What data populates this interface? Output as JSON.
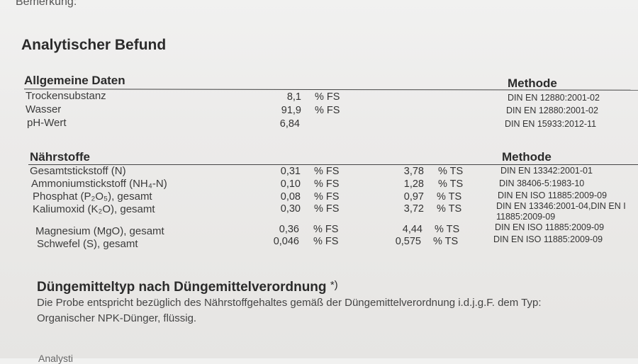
{
  "header_cut": "Bemerkung:",
  "title": "Analytischer Befund",
  "general": {
    "heading": "Allgemeine Daten",
    "method_heading": "Methode",
    "rows": [
      {
        "label": "Trockensubstanz",
        "fs": "8,1",
        "unit_fs": "% FS",
        "method": "DIN EN 12880:2001-02"
      },
      {
        "label": "Wasser",
        "fs": "91,9",
        "unit_fs": "% FS",
        "method": "DIN EN 12880:2001-02"
      },
      {
        "label": "pH-Wert",
        "fs": "6,84",
        "unit_fs": "",
        "method": "DIN EN 15933:2012-11"
      }
    ]
  },
  "nutrients": {
    "heading": "Nährstoffe",
    "method_heading": "Methode",
    "rows": [
      {
        "label": "Gesamtstickstoff (N)",
        "fs": "0,31",
        "unit_fs": "% FS",
        "ts": "3,78",
        "unit_ts": "% TS",
        "method": "DIN EN 13342:2001-01",
        "method2": ""
      },
      {
        "label": "Ammoniumstickstoff (NH₄-N)",
        "fs": "0,10",
        "unit_fs": "% FS",
        "ts": "1,28",
        "unit_ts": "% TS",
        "method": "DIN 38406-5:1983-10",
        "method2": ""
      },
      {
        "label": "Phosphat (P₂O₅), gesamt",
        "fs": "0,08",
        "unit_fs": "% FS",
        "ts": "0,97",
        "unit_ts": "% TS",
        "method": "DIN EN ISO 11885:2009-09",
        "method2": ""
      },
      {
        "label": "Kaliumoxid (K₂O), gesamt",
        "fs": "0,30",
        "unit_fs": "% FS",
        "ts": "3,72",
        "unit_ts": "% TS",
        "method": "DIN EN 13346:2001-04,DIN EN I",
        "method2": "11885:2009-09"
      },
      {
        "label": "Magnesium (MgO), gesamt",
        "fs": "0,36",
        "unit_fs": "% FS",
        "ts": "4,44",
        "unit_ts": "% TS",
        "method": "DIN EN ISO 11885:2009-09",
        "method2": ""
      },
      {
        "label": "Schwefel (S), gesamt",
        "fs": "0,046",
        "unit_fs": "% FS",
        "ts": "0,575",
        "unit_ts": "% TS",
        "method": "DIN EN ISO 11885:2009-09",
        "method2": ""
      }
    ]
  },
  "fertilizer": {
    "title": "Düngemitteltyp nach Düngemittelverordnung",
    "mark": "*)",
    "line1": "Die Probe entspricht bezüglich des Nährstoffgehaltes gemäß der Düngemittelverordnung i.d.j.g.F. dem Typ:",
    "line2": "Organischer NPK-Dünger, flüssig."
  },
  "footer_cut": "Analysti"
}
